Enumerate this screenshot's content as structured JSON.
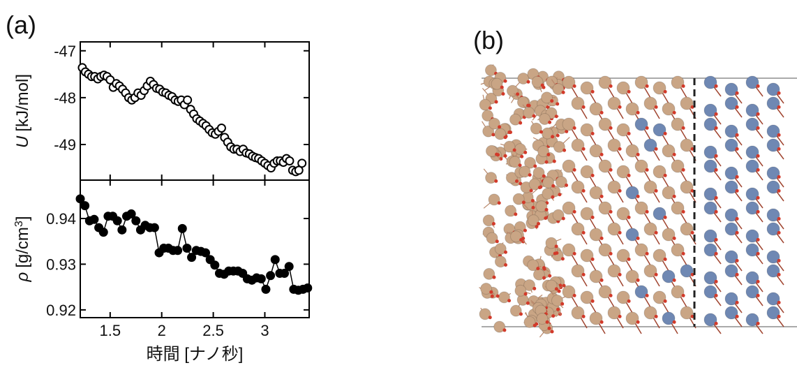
{
  "panel_labels": [
    "(a)",
    "(b)"
  ],
  "chart_data": [
    {
      "type": "scatter",
      "marker": "open",
      "color": "#000000",
      "ylabel": {
        "symbol": "U",
        "unit": "[kJ/mol]"
      },
      "xlim": [
        1.21,
        3.43
      ],
      "xticks": [
        1.5,
        2,
        2.5,
        3
      ],
      "ylim": [
        -49.76,
        -46.81
      ],
      "yticks": [
        -47,
        -48,
        -49
      ],
      "x": [
        1.23,
        1.26,
        1.29,
        1.32,
        1.35,
        1.38,
        1.41,
        1.44,
        1.47,
        1.5,
        1.53,
        1.56,
        1.59,
        1.62,
        1.65,
        1.68,
        1.71,
        1.74,
        1.77,
        1.8,
        1.83,
        1.86,
        1.89,
        1.92,
        1.95,
        1.98,
        2.01,
        2.04,
        2.07,
        2.1,
        2.13,
        2.16,
        2.19,
        2.22,
        2.25,
        2.28,
        2.31,
        2.34,
        2.37,
        2.4,
        2.43,
        2.46,
        2.49,
        2.52,
        2.55,
        2.58,
        2.61,
        2.64,
        2.67,
        2.7,
        2.73,
        2.76,
        2.79,
        2.82,
        2.85,
        2.88,
        2.91,
        2.94,
        2.97,
        3.0,
        3.03,
        3.06,
        3.09,
        3.12,
        3.15,
        3.18,
        3.21,
        3.24,
        3.27,
        3.3,
        3.33,
        3.36
      ],
      "values": [
        -47.36,
        -47.45,
        -47.5,
        -47.55,
        -47.55,
        -47.6,
        -47.55,
        -47.52,
        -47.55,
        -47.62,
        -47.78,
        -47.7,
        -47.75,
        -47.82,
        -47.9,
        -48.0,
        -48.05,
        -48.0,
        -47.9,
        -47.95,
        -47.85,
        -47.75,
        -47.65,
        -47.72,
        -47.8,
        -47.82,
        -47.88,
        -47.9,
        -47.95,
        -47.98,
        -48.05,
        -48.08,
        -48.05,
        -48.15,
        -48.05,
        -48.25,
        -48.35,
        -48.45,
        -48.5,
        -48.55,
        -48.6,
        -48.68,
        -48.75,
        -48.78,
        -48.72,
        -48.65,
        -48.85,
        -48.95,
        -49.05,
        -49.1,
        -49.1,
        -49.15,
        -49.1,
        -49.18,
        -49.2,
        -49.25,
        -49.28,
        -49.3,
        -49.35,
        -49.4,
        -49.45,
        -49.5,
        -49.4,
        -49.35,
        -49.35,
        -49.38,
        -49.3,
        -49.35,
        -49.55,
        -49.58,
        -49.55,
        -49.4
      ]
    },
    {
      "type": "line",
      "marker": "filled",
      "color": "#000000",
      "ylabel": {
        "symbol": "ρ",
        "unit": "[g/cm",
        "sup": "3",
        "close": "]"
      },
      "xlabel": "時間 [ナノ秒]",
      "xlim": [
        1.21,
        3.43
      ],
      "xticks": [
        1.5,
        2,
        2.5,
        3
      ],
      "ylim": [
        0.9183,
        0.9484
      ],
      "yticks": [
        0.94,
        0.93,
        0.92
      ],
      "x": [
        1.21,
        1.255,
        1.3,
        1.345,
        1.39,
        1.435,
        1.48,
        1.525,
        1.57,
        1.615,
        1.66,
        1.705,
        1.75,
        1.795,
        1.84,
        1.885,
        1.93,
        1.975,
        2.02,
        2.065,
        2.11,
        2.155,
        2.2,
        2.245,
        2.29,
        2.335,
        2.38,
        2.425,
        2.47,
        2.515,
        2.56,
        2.605,
        2.65,
        2.695,
        2.74,
        2.785,
        2.83,
        2.875,
        2.92,
        2.965,
        3.01,
        3.055,
        3.1,
        3.145,
        3.19,
        3.235,
        3.28,
        3.325,
        3.37,
        3.415
      ],
      "values": [
        0.9443,
        0.9428,
        0.9395,
        0.9398,
        0.938,
        0.937,
        0.9405,
        0.9405,
        0.9395,
        0.9375,
        0.9405,
        0.941,
        0.9395,
        0.9375,
        0.9385,
        0.938,
        0.938,
        0.9325,
        0.9335,
        0.9335,
        0.933,
        0.933,
        0.9378,
        0.9335,
        0.9315,
        0.933,
        0.9328,
        0.9325,
        0.931,
        0.9298,
        0.928,
        0.9278,
        0.9285,
        0.9285,
        0.9285,
        0.928,
        0.9268,
        0.9265,
        0.927,
        0.9268,
        0.9245,
        0.9275,
        0.931,
        0.928,
        0.928,
        0.9295,
        0.9245,
        0.9243,
        0.9245,
        0.9248
      ]
    }
  ]
}
